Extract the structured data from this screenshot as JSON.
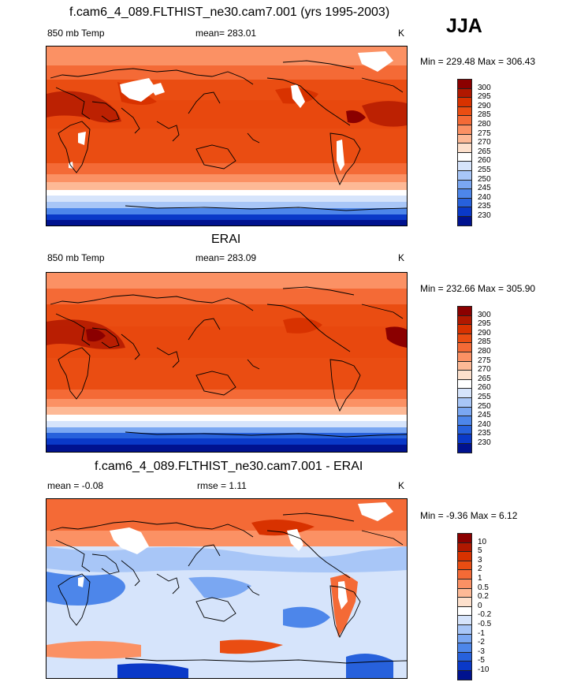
{
  "season": "JJA",
  "units": "K",
  "panels": [
    {
      "title": "f.cam6_4_089.FLTHIST_ne30.cam7.001 (yrs 1995-2003)",
      "variable": "850 mb Temp",
      "stat": "mean= 283.01",
      "units": "K",
      "minmax": "Min = 229.48 Max = 306.43",
      "min": 229.48,
      "max": 306.43,
      "mean": 283.01
    },
    {
      "title": "ERAI",
      "variable": "850 mb Temp",
      "stat": "mean= 283.09",
      "units": "K",
      "minmax": "Min = 232.66 Max = 305.90",
      "min": 232.66,
      "max": 305.9,
      "mean": 283.09
    },
    {
      "title": "f.cam6_4_089.FLTHIST_ne30.cam7.001 - ERAI",
      "variable": "mean =  -0.08",
      "stat": "rmse =   1.11",
      "units": "K",
      "minmax": "Min =  -9.36 Max =   6.12",
      "min": -9.36,
      "max": 6.12,
      "mean": -0.08,
      "rmse": 1.11
    }
  ],
  "colorbar_temp": {
    "labels": [
      "300",
      "295",
      "290",
      "285",
      "280",
      "275",
      "270",
      "265",
      "260",
      "255",
      "250",
      "245",
      "240",
      "235",
      "230"
    ],
    "colors": [
      "#8b0000",
      "#b01800",
      "#d83200",
      "#ea4d12",
      "#f46a36",
      "#fb9164",
      "#fdb996",
      "#fde0cc",
      "#ffffff",
      "#d6e4fb",
      "#a8c6f7",
      "#7aa7f2",
      "#4d86ea",
      "#2761dc",
      "#0a39c8",
      "#00128f"
    ]
  },
  "colorbar_diff": {
    "labels": [
      "10",
      "5",
      "3",
      "2",
      "1",
      "0.5",
      "0.2",
      "0",
      "-0.2",
      "-0.5",
      "-1",
      "-2",
      "-3",
      "-5",
      "-10"
    ],
    "colors": [
      "#8b0000",
      "#b01800",
      "#d83200",
      "#ea4d12",
      "#f46a36",
      "#fb9164",
      "#fdb996",
      "#fde0cc",
      "#ffffff",
      "#d6e4fb",
      "#a8c6f7",
      "#7aa7f2",
      "#4d86ea",
      "#2761dc",
      "#0a39c8",
      "#00128f"
    ]
  }
}
